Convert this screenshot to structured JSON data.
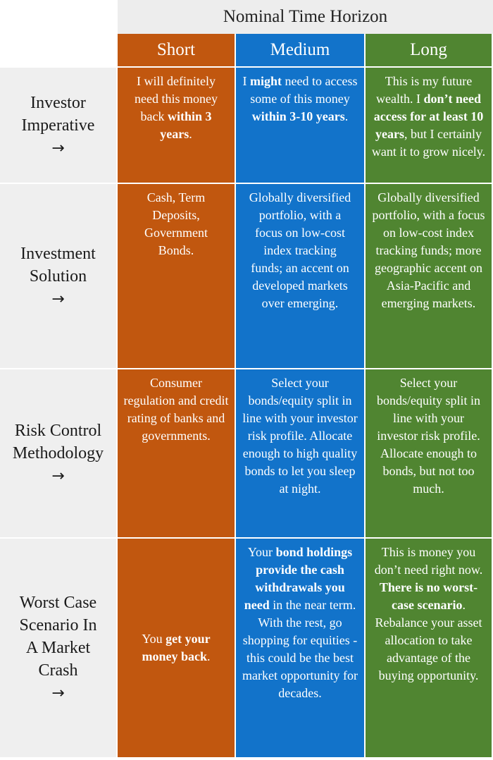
{
  "header": {
    "title": "Nominal Time Horizon",
    "columns": [
      "Short",
      "Medium",
      "Long"
    ]
  },
  "colors": {
    "short": "#c1570f",
    "medium": "#1273ca",
    "long": "#508531",
    "row_header_bg": "#efefef"
  },
  "arrow_icon": "→",
  "rows": [
    {
      "label": "Investor Imperative",
      "short": [
        {
          "t": "I will definitely need this money back "
        },
        {
          "t": "within 3 years",
          "b": true
        },
        {
          "t": "."
        }
      ],
      "medium": [
        {
          "t": "I "
        },
        {
          "t": "might",
          "b": true
        },
        {
          "t": " need to access some of this money "
        },
        {
          "t": "within 3-10 years",
          "b": true
        },
        {
          "t": "."
        }
      ],
      "long": [
        {
          "t": "This is my future wealth.  I "
        },
        {
          "t": "don’t need access for at least 10 years",
          "b": true
        },
        {
          "t": ", but I certainly want it to grow nicely."
        }
      ]
    },
    {
      "label": "Investment Solution",
      "short": [
        {
          "t": "Cash, Term Deposits, Government Bonds."
        }
      ],
      "medium": [
        {
          "t": "Globally diversified portfolio, with a focus on low-cost index tracking funds; an accent on developed markets over emerging."
        }
      ],
      "long": [
        {
          "t": "Globally diversified portfolio, with a focus on low-cost index tracking funds; more geographic accent on Asia-Pacific and emerging markets."
        }
      ]
    },
    {
      "label": "Risk Control Methodology",
      "short": [
        {
          "t": "Consumer regulation and credit rating of banks and governments."
        }
      ],
      "medium": [
        {
          "t": "Select your bonds/equity split in line with your investor risk profile.  Allocate enough to high quality bonds to let you sleep at night."
        }
      ],
      "long": [
        {
          "t": "Select your bonds/equity split in line with your investor risk profile.  Allocate enough to bonds, but not too much."
        }
      ]
    },
    {
      "label": "Worst Case Scenario In A Market Crash",
      "short": [
        {
          "t": "You "
        },
        {
          "t": "get your money back",
          "b": true
        },
        {
          "t": "."
        }
      ],
      "medium": [
        {
          "t": "Your "
        },
        {
          "t": "bond holdings provide the cash withdrawals you need",
          "b": true
        },
        {
          "t": " in the near term.  With the rest, go shopping for equities - this could be the best market opportunity for decades."
        }
      ],
      "long": [
        {
          "t": "This is money you don’t need right now.  "
        },
        {
          "t": "There is no worst-case scenario",
          "b": true
        },
        {
          "t": ". Rebalance your asset allocation to take advantage of the buying opportunity."
        }
      ]
    }
  ]
}
